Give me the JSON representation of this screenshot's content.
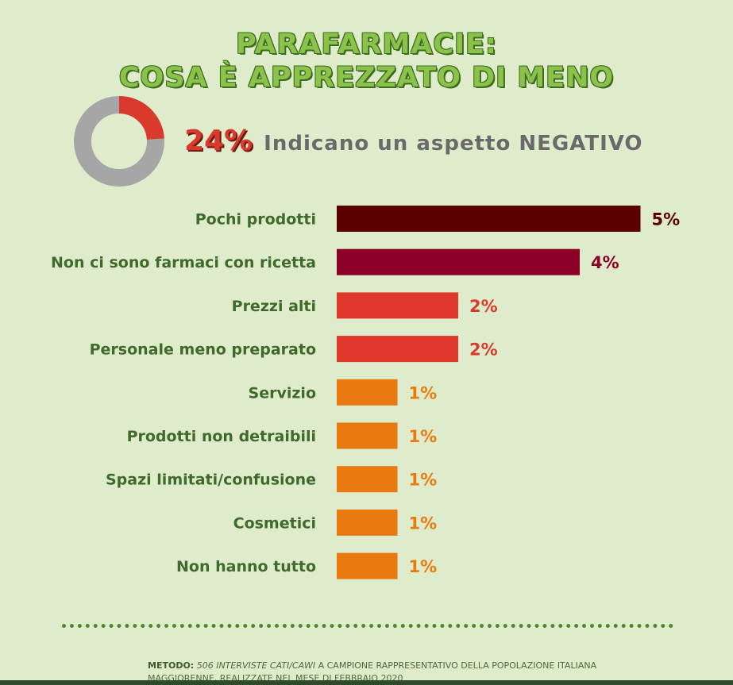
{
  "title": {
    "line1": "PARAFARMACIE:",
    "line2": "COSA È APPREZZATO DI MENO"
  },
  "summary": {
    "percent": "24%",
    "percent_value": 24,
    "text": "Indicano un aspetto NEGATIVO",
    "donut_colors": {
      "highlight": "#d93a2c",
      "rest": "#a6a6a6"
    }
  },
  "chart_data": {
    "type": "bar",
    "orientation": "horizontal",
    "categories": [
      "Pochi prodotti",
      "Non ci sono farmaci con ricetta",
      "Prezzi alti",
      "Personale meno preparato",
      "Servizio",
      "Prodotti non detraibili",
      "Spazi limitati/confusione",
      "Cosmetici",
      "Non hanno tutto"
    ],
    "values": [
      5,
      4,
      2,
      2,
      1,
      1,
      1,
      1,
      1
    ],
    "value_labels": [
      "5%",
      "4%",
      "2%",
      "2%",
      "1%",
      "1%",
      "1%",
      "1%",
      "1%"
    ],
    "colors": [
      "#5a0000",
      "#8c0028",
      "#e0392b",
      "#e0392b",
      "#e87a10",
      "#e87a10",
      "#e87a10",
      "#e87a10",
      "#e87a10"
    ],
    "label_colors": [
      "#5a0000",
      "#8c0028",
      "#d93a2c",
      "#d93a2c",
      "#e87a10",
      "#e87a10",
      "#e87a10",
      "#e87a10",
      "#e87a10"
    ],
    "xlim": [
      0,
      5
    ],
    "grid": false
  },
  "footer": {
    "method_label": "METODO:",
    "method_italic": "506 INTERVISTE CATI/CAWI",
    "method_text": " A CAMPIONE RAPPRESENTATIVO DELLA POPOLAZIONE ITALIANA MAGGIORENNE, REALIZZATE NEL MESE DI FEBBRAIO 2020"
  }
}
